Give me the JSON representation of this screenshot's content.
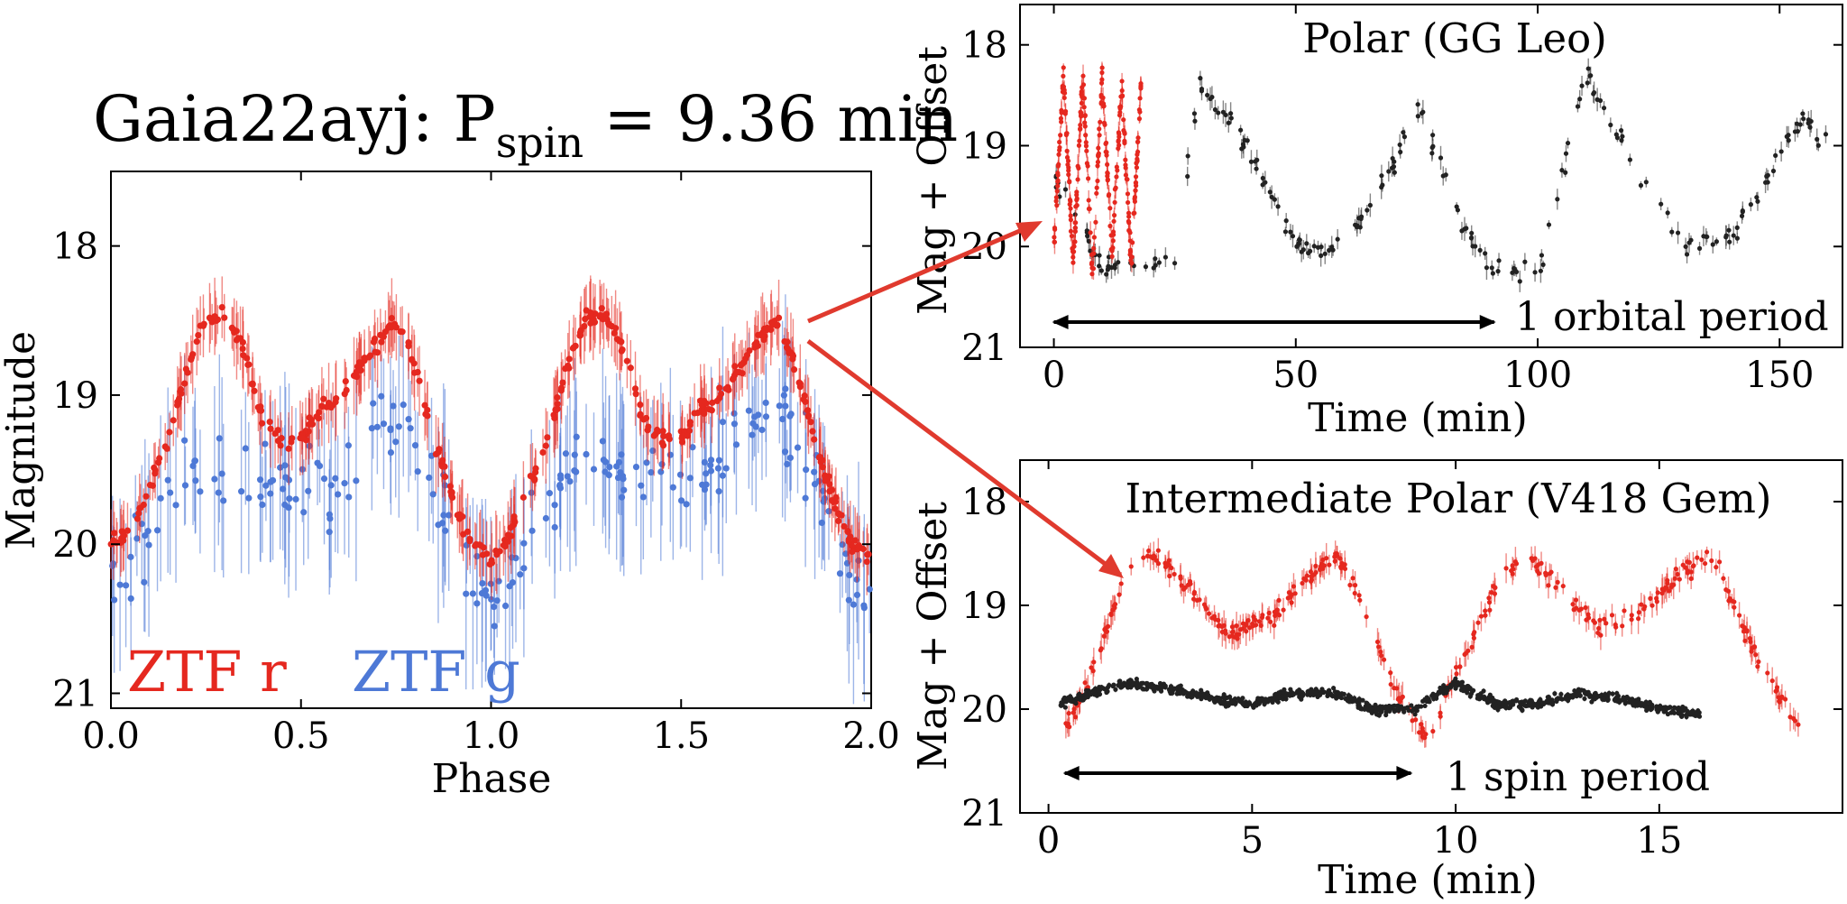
{
  "headline": {
    "prefix": "Gaia22ayj: P",
    "subscript": "spin",
    "suffix": " = 9.36 min"
  },
  "colors": {
    "ztf_r": "#e5281f",
    "ztf_g": "#4e79d6",
    "reference": "#222222",
    "arrow": "#e03a2e"
  },
  "chart_data": [
    {
      "type": "scatter",
      "xlabel": "Phase",
      "ylabel": "Magnitude",
      "xlim": [
        0.0,
        2.0
      ],
      "ylim": [
        21.1,
        17.5
      ],
      "y_inverted": true,
      "xticks": [
        "0.0",
        "0.5",
        "1.0",
        "1.5",
        "2.0"
      ],
      "xtick_values": [
        0.0,
        0.5,
        1.0,
        1.5,
        2.0
      ],
      "yticks": [
        "18",
        "19",
        "20",
        "21"
      ],
      "ytick_values": [
        18,
        19,
        20,
        21
      ],
      "legend": [
        {
          "label": "ZTF r",
          "color": "#e5281f"
        },
        {
          "label": "ZTF g",
          "color": "#4e79d6"
        }
      ],
      "legend_placement": "bottom-left",
      "series": [
        {
          "name": "ZTF r",
          "color": "#e5281f",
          "x": [
            0.0,
            0.05,
            0.1,
            0.15,
            0.2,
            0.25,
            0.3,
            0.35,
            0.4,
            0.45,
            0.5,
            0.55,
            0.6,
            0.65,
            0.7,
            0.75,
            0.8,
            0.85,
            0.9,
            0.95,
            1.0,
            1.05,
            1.1,
            1.15,
            1.2,
            1.25,
            1.3,
            1.35,
            1.4,
            1.45,
            1.5,
            1.55,
            1.6,
            1.65,
            1.7,
            1.75,
            1.8,
            1.85,
            1.9,
            1.95,
            2.0
          ],
          "y": [
            20.0,
            19.9,
            19.65,
            19.3,
            18.8,
            18.5,
            18.45,
            18.7,
            19.15,
            19.3,
            19.3,
            19.1,
            19.0,
            18.85,
            18.65,
            18.5,
            18.8,
            19.3,
            19.7,
            20.0,
            20.1,
            19.95,
            19.6,
            19.3,
            18.8,
            18.5,
            18.45,
            18.7,
            19.15,
            19.3,
            19.3,
            19.1,
            19.0,
            18.85,
            18.65,
            18.5,
            18.8,
            19.3,
            19.7,
            20.0,
            20.1
          ]
        },
        {
          "name": "ZTF g",
          "color": "#4e79d6",
          "x": [
            0.0,
            0.1,
            0.2,
            0.3,
            0.4,
            0.5,
            0.6,
            0.7,
            0.8,
            0.9,
            1.0,
            1.1,
            1.2,
            1.3,
            1.4,
            1.5,
            1.6,
            1.7,
            1.8,
            1.9,
            2.0
          ],
          "y": [
            20.3,
            19.9,
            19.6,
            19.4,
            19.55,
            19.7,
            19.5,
            19.15,
            19.25,
            19.9,
            20.4,
            19.9,
            19.6,
            19.4,
            19.55,
            19.7,
            19.5,
            19.15,
            19.25,
            19.9,
            20.4
          ]
        }
      ]
    },
    {
      "type": "scatter",
      "title": "Polar (GG Leo)",
      "xlabel": "Time (min)",
      "ylabel": "Mag + Offset",
      "xlim": [
        -7,
        163
      ],
      "ylim": [
        21.0,
        17.6
      ],
      "y_inverted": true,
      "xticks": [
        "0",
        "50",
        "100",
        "150"
      ],
      "xtick_values": [
        0,
        50,
        100,
        150
      ],
      "yticks": [
        "18",
        "19",
        "20",
        "21"
      ],
      "ytick_values": [
        18,
        19,
        20,
        21
      ],
      "annotation": "1 orbital period",
      "period_arrow": [
        0,
        91
      ],
      "series": [
        {
          "name": "",
          "color": "#222222",
          "x": [
            0,
            10,
            20,
            25,
            30,
            40,
            50,
            60,
            70,
            75,
            80,
            85,
            90,
            100,
            110,
            120,
            130,
            140,
            150,
            155,
            160
          ],
          "y": [
            19.3,
            20.2,
            20.2,
            20.1,
            18.4,
            19.0,
            20.0,
            20.0,
            19.2,
            18.6,
            19.2,
            19.8,
            20.2,
            20.3,
            18.3,
            19.2,
            20.0,
            19.9,
            19.1,
            18.7,
            19.0
          ]
        },
        {
          "name": "",
          "color": "#e5281f",
          "x": [
            0,
            2,
            4,
            6,
            8,
            10,
            12,
            14,
            16,
            18
          ],
          "y": [
            20.0,
            18.3,
            20.2,
            18.3,
            20.3,
            18.3,
            20.1,
            18.4,
            20.2,
            18.4
          ]
        }
      ]
    },
    {
      "type": "scatter",
      "title": "Intermediate Polar (V418 Gem)",
      "xlabel": "Time (min)",
      "ylabel": "Mag + Offset",
      "xlim": [
        -0.7,
        19.5
      ],
      "ylim": [
        21.0,
        17.6
      ],
      "y_inverted": true,
      "xticks": [
        "0",
        "5",
        "10",
        "15"
      ],
      "xtick_values": [
        0,
        5,
        10,
        15
      ],
      "yticks": [
        "18",
        "19",
        "20",
        "21"
      ],
      "ytick_values": [
        18,
        19,
        20,
        21
      ],
      "annotation": "1 spin period",
      "period_arrow": [
        0.4,
        8.9
      ],
      "series": [
        {
          "name": "",
          "color": "#e5281f",
          "x": [
            0.3,
            1.0,
            1.8,
            2.5,
            3.2,
            4.5,
            5.5,
            6.5,
            7.0,
            7.5,
            8.5,
            9.3,
            10.0,
            11.0,
            11.7,
            12.5,
            13.5,
            14.5,
            15.5,
            16.3,
            17.5,
            18.5
          ],
          "y": [
            20.3,
            19.7,
            18.8,
            18.5,
            18.7,
            19.3,
            19.1,
            18.7,
            18.5,
            18.8,
            19.8,
            20.3,
            19.7,
            18.8,
            18.5,
            18.8,
            19.2,
            19.1,
            18.7,
            18.5,
            19.6,
            20.2
          ]
        },
        {
          "name": "",
          "color": "#222222",
          "x": [
            0.3,
            1.0,
            2.0,
            3.0,
            4.0,
            5.0,
            6.0,
            7.0,
            8.0,
            9.0,
            10.0,
            11.0,
            12.0,
            13.0,
            14.0,
            15.0,
            16.0
          ],
          "y": [
            19.95,
            19.85,
            19.75,
            19.8,
            19.9,
            19.95,
            19.85,
            19.85,
            20.0,
            20.0,
            19.75,
            19.95,
            19.95,
            19.85,
            19.9,
            20.0,
            20.05
          ]
        }
      ]
    }
  ]
}
